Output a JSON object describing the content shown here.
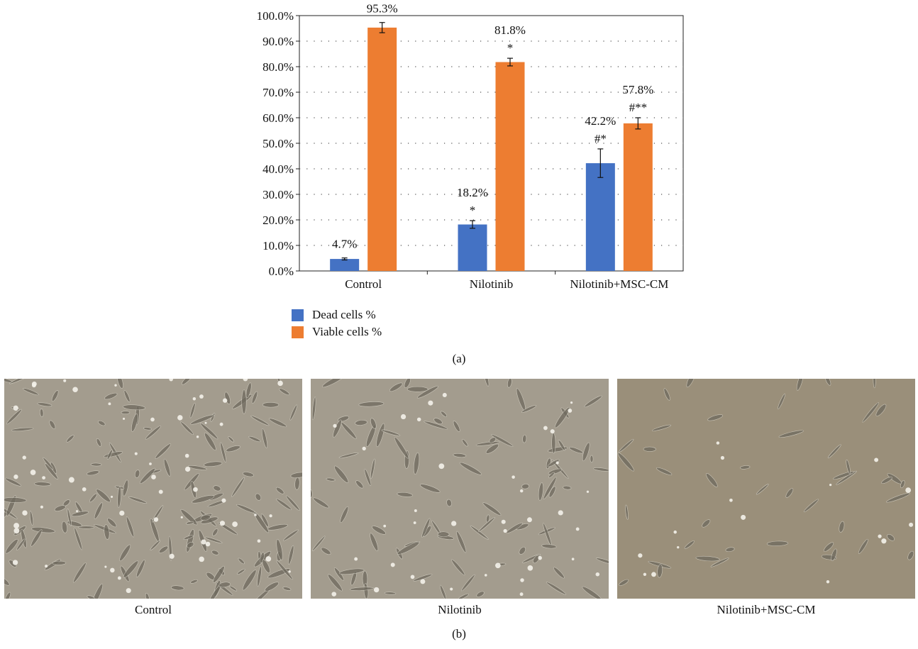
{
  "chart_data": {
    "type": "bar",
    "categories": [
      "Control",
      "Nilotinib",
      "Nilotinib+MSC-CM"
    ],
    "series": [
      {
        "name": "Dead cells %",
        "color": "#4472c4",
        "values": [
          4.7,
          18.2,
          42.2
        ],
        "errors": [
          0.4,
          1.5,
          5.6
        ],
        "labels": [
          "4.7%",
          "18.2%",
          "42.2%"
        ],
        "annotations": [
          "",
          "*",
          "#*"
        ]
      },
      {
        "name": "Viable cells %",
        "color": "#ed7d31",
        "values": [
          95.3,
          81.8,
          57.8
        ],
        "errors": [
          2.0,
          1.5,
          2.2
        ],
        "labels": [
          "95.3%",
          "81.8%",
          "57.8%"
        ],
        "annotations": [
          "",
          "*",
          "#**"
        ]
      }
    ],
    "ylim": [
      0,
      100
    ],
    "yticks": [
      "0.0%",
      "10.0%",
      "20.0%",
      "30.0%",
      "40.0%",
      "50.0%",
      "60.0%",
      "70.0%",
      "80.0%",
      "90.0%",
      "100.0%"
    ],
    "grid": true,
    "legend_position": "bottom-left"
  },
  "panel_a_label": "(a)",
  "panel_b_label": "(b)",
  "photos": [
    {
      "caption": "Control",
      "density": "high"
    },
    {
      "caption": "Nilotinib",
      "density": "medium"
    },
    {
      "caption": "Nilotinib+MSC-CM",
      "density": "low"
    }
  ]
}
